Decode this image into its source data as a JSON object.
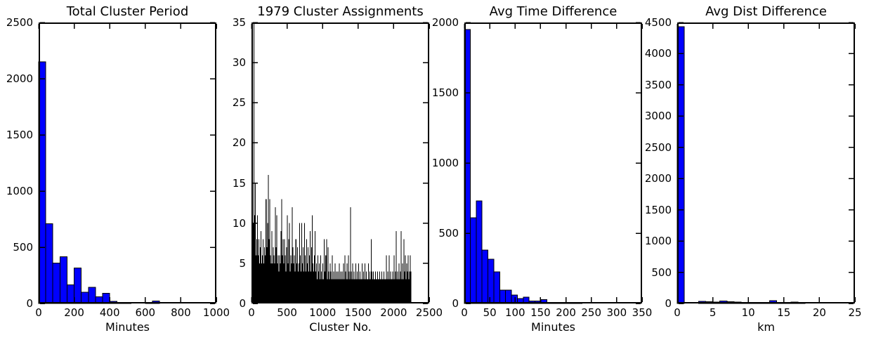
{
  "figure": {
    "background": "#ffffff",
    "frame_color": "#000000",
    "text_color": "#000000",
    "bar_blue": "#0000ff",
    "bar_black": "#000000"
  },
  "chart_data": [
    {
      "type": "bar",
      "title": "Total Cluster Period",
      "xlabel": "Minutes",
      "ylabel": "",
      "xlim": [
        0,
        1000
      ],
      "ylim": [
        0,
        2500
      ],
      "xticks": [
        0,
        200,
        400,
        600,
        800,
        1000
      ],
      "yticks": [
        0,
        500,
        1000,
        1500,
        2000,
        2500
      ],
      "grid": false,
      "bar_color": "#0000ff",
      "bar_edge_color": "#000000",
      "bin_start": 0,
      "bin_width": 40,
      "values": [
        2150,
        710,
        360,
        415,
        165,
        315,
        100,
        145,
        60,
        90,
        20,
        10,
        8,
        0,
        0,
        4,
        22
      ]
    },
    {
      "type": "bar",
      "title": "1979 Cluster Assignments",
      "xlabel": "Cluster No.",
      "ylabel": "",
      "xlim": [
        0,
        2500
      ],
      "ylim": [
        0,
        35
      ],
      "xticks": [
        0,
        500,
        1000,
        1500,
        2000,
        2500
      ],
      "yticks": [
        0,
        5,
        10,
        15,
        20,
        25,
        30,
        35
      ],
      "grid": false,
      "bar_color": "#000000",
      "bar_edge_color": null,
      "bin_start": 0,
      "bin_width": 10,
      "values": [
        11,
        7,
        10,
        35,
        11,
        15,
        6,
        8,
        11,
        6,
        8,
        5,
        7,
        9,
        5,
        6,
        8,
        5,
        7,
        6,
        13,
        7,
        10,
        16,
        8,
        13,
        6,
        5,
        9,
        5,
        7,
        6,
        5,
        12,
        7,
        11,
        5,
        6,
        4,
        6,
        5,
        9,
        13,
        6,
        8,
        5,
        8,
        6,
        4,
        7,
        11,
        5,
        8,
        10,
        4,
        6,
        5,
        12,
        7,
        5,
        6,
        4,
        8,
        5,
        7,
        4,
        5,
        10,
        6,
        4,
        10,
        5,
        7,
        4,
        10,
        6,
        4,
        8,
        5,
        7,
        4,
        6,
        9,
        4,
        7,
        11,
        5,
        4,
        6,
        9,
        4,
        5,
        3,
        6,
        4,
        5,
        3,
        6,
        4,
        3,
        5,
        3,
        8,
        4,
        6,
        8,
        3,
        7,
        4,
        3,
        5,
        4,
        3,
        6,
        3,
        4,
        3,
        5,
        3,
        4,
        3,
        4,
        3,
        5,
        3,
        4,
        3,
        4,
        3,
        5,
        3,
        6,
        4,
        3,
        5,
        3,
        6,
        4,
        3,
        12,
        4,
        3,
        5,
        3,
        4,
        3,
        5,
        3,
        4,
        3,
        5,
        3,
        4,
        3,
        3,
        5,
        3,
        4,
        3,
        5,
        3,
        4,
        3,
        3,
        5,
        3,
        4,
        3,
        8,
        4,
        3,
        4,
        3,
        3,
        4,
        3,
        3,
        4,
        3,
        3,
        4,
        3,
        3,
        4,
        3,
        3,
        4,
        3,
        3,
        6,
        3,
        4,
        3,
        6,
        3,
        4,
        3,
        3,
        4,
        3,
        6,
        3,
        4,
        9,
        3,
        4,
        3,
        5,
        3,
        4,
        9,
        3,
        5,
        3,
        8,
        4,
        6,
        3,
        5,
        4,
        6,
        3,
        4,
        6,
        4
      ]
    },
    {
      "type": "bar",
      "title": "Avg Time Difference",
      "xlabel": "Minutes",
      "ylabel": "",
      "xlim": [
        0,
        350
      ],
      "ylim": [
        0,
        2000
      ],
      "xticks": [
        0,
        50,
        100,
        150,
        200,
        250,
        300,
        350
      ],
      "yticks": [
        0,
        500,
        1000,
        1500,
        2000
      ],
      "grid": false,
      "bar_color": "#0000ff",
      "bar_edge_color": "#000000",
      "bin_start": 0,
      "bin_width": 11.6,
      "values": [
        1950,
        610,
        730,
        380,
        315,
        225,
        95,
        95,
        60,
        35,
        45,
        17,
        17,
        28,
        4,
        2,
        2,
        8,
        2,
        6
      ]
    },
    {
      "type": "bar",
      "title": "Avg Dist Difference",
      "xlabel": "km",
      "ylabel": "",
      "xlim": [
        0,
        25
      ],
      "ylim": [
        0,
        4500
      ],
      "xticks": [
        0,
        5,
        10,
        15,
        20,
        25
      ],
      "yticks": [
        0,
        500,
        1000,
        1500,
        2000,
        2500,
        3000,
        3500,
        4000,
        4500
      ],
      "grid": false,
      "bar_color": "#0000ff",
      "bar_edge_color": "#000000",
      "bin_start": 0,
      "bin_width": 1,
      "values": [
        4430,
        0,
        0,
        35,
        30,
        25,
        38,
        28,
        25,
        8,
        6,
        6,
        8,
        45,
        8,
        4,
        20,
        3,
        0,
        0,
        0,
        0,
        0,
        0,
        0
      ]
    }
  ]
}
